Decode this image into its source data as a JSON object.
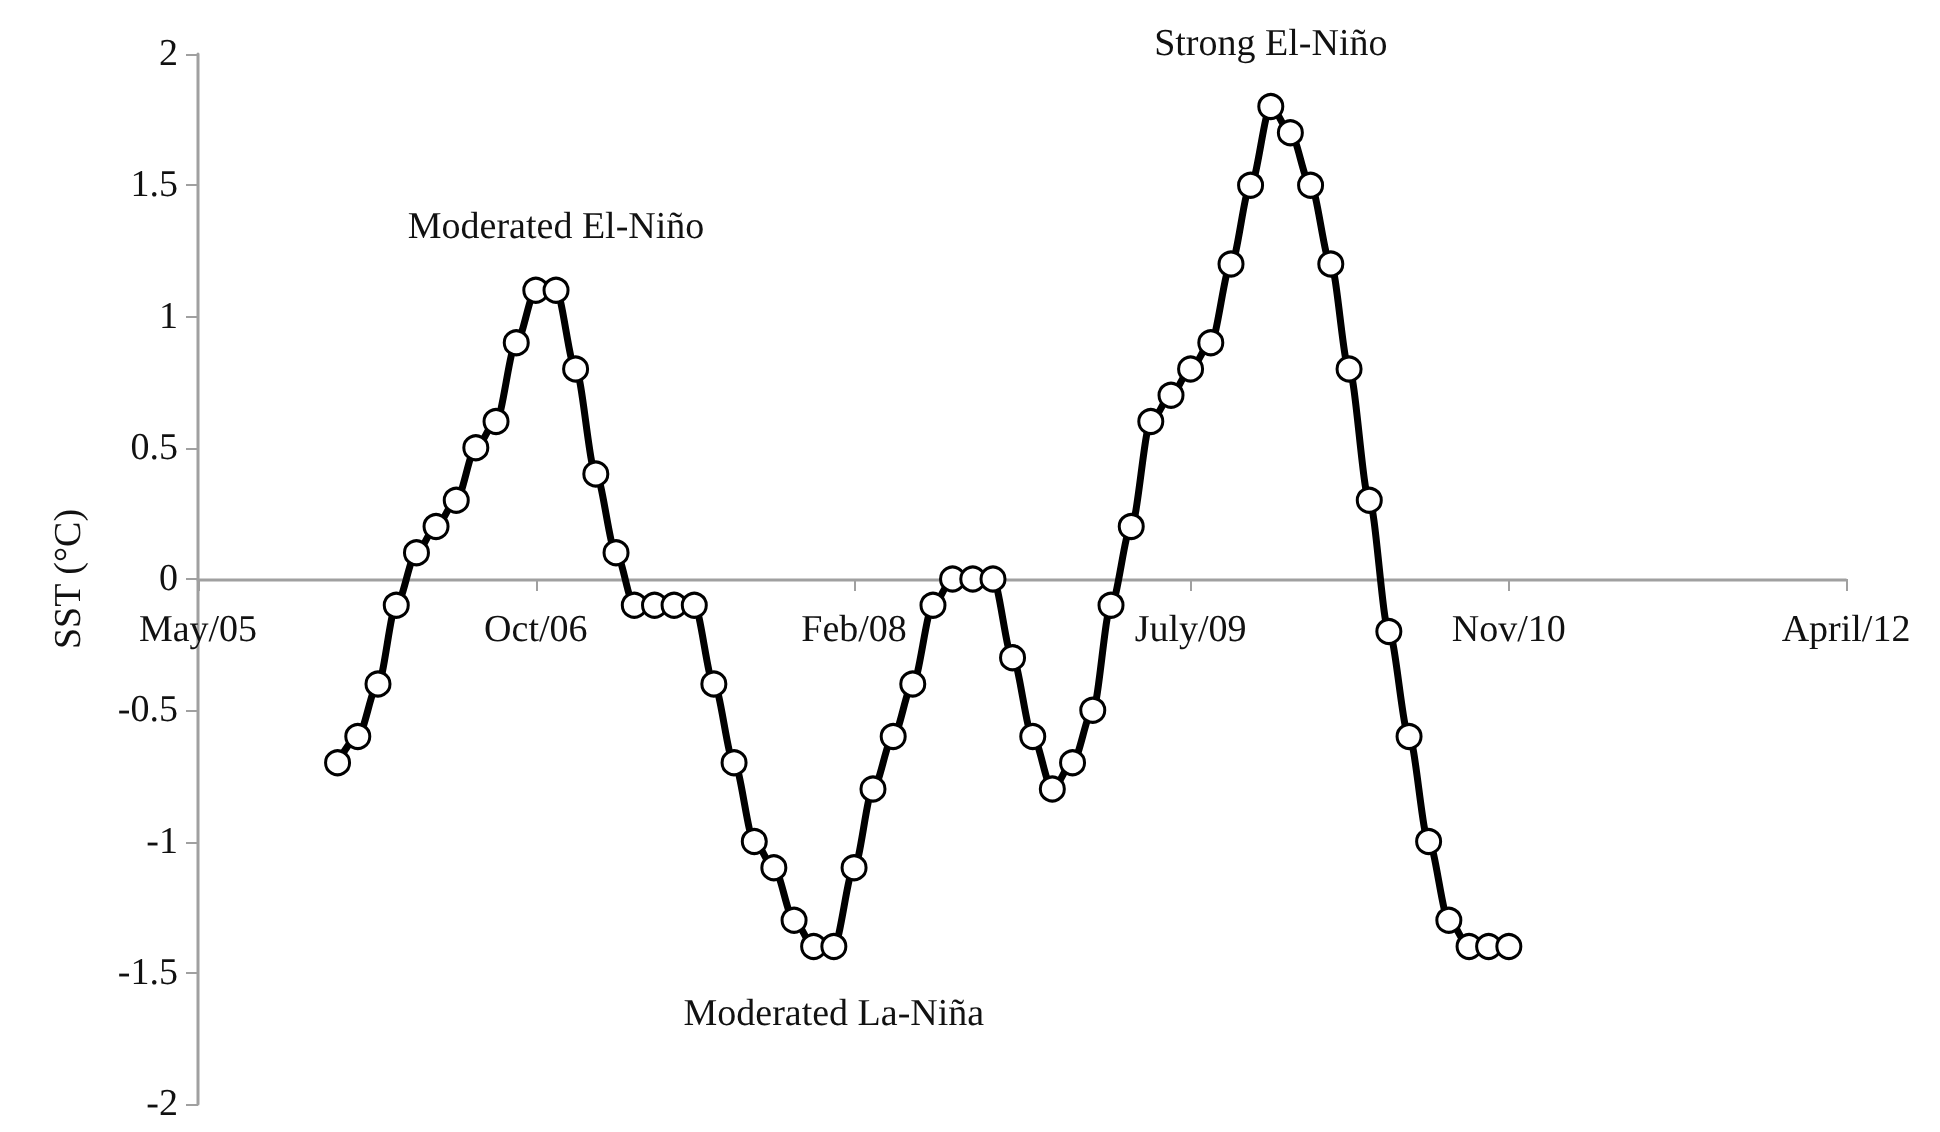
{
  "chart_data": {
    "type": "line",
    "ylabel": "SST (°C)",
    "x": [
      "2005-12",
      "2006-01",
      "2006-02",
      "2006-03",
      "2006-04",
      "2006-05",
      "2006-06",
      "2006-07",
      "2006-08",
      "2006-09",
      "2006-10",
      "2006-11",
      "2006-12",
      "2007-01",
      "2007-02",
      "2007-03",
      "2007-04",
      "2007-05",
      "2007-06",
      "2007-07",
      "2007-08",
      "2007-09",
      "2007-10",
      "2007-11",
      "2007-12",
      "2008-01",
      "2008-02",
      "2008-03",
      "2008-04",
      "2008-05",
      "2008-06",
      "2008-07",
      "2008-08",
      "2008-09",
      "2008-10",
      "2008-11",
      "2008-12",
      "2009-01",
      "2009-02",
      "2009-03",
      "2009-04",
      "2009-05",
      "2009-06",
      "2009-07",
      "2009-08",
      "2009-09",
      "2009-10",
      "2009-11",
      "2009-12",
      "2010-01",
      "2010-02",
      "2010-03",
      "2010-04",
      "2010-05",
      "2010-06",
      "2010-07",
      "2010-08",
      "2010-09",
      "2010-10",
      "2010-11"
    ],
    "series": [
      {
        "color": "#000000",
        "values": [
          -0.7,
          -0.6,
          -0.4,
          -0.1,
          0.1,
          0.2,
          0.3,
          0.5,
          0.6,
          0.9,
          1.1,
          1.1,
          0.8,
          0.4,
          0.1,
          -0.1,
          -0.1,
          -0.1,
          -0.1,
          -0.4,
          -0.7,
          -1.0,
          -1.1,
          -1.3,
          -1.4,
          -1.4,
          -1.1,
          -0.8,
          -0.6,
          -0.4,
          -0.1,
          0,
          0,
          0,
          -0.3,
          -0.6,
          -0.8,
          -0.7,
          -0.5,
          -0.1,
          0.2,
          0.6,
          0.7,
          0.8,
          0.9,
          1.2,
          1.5,
          1.8,
          1.7,
          1.5,
          1.2,
          0.8,
          0.3,
          -0.2,
          -0.6,
          -1.0,
          -1.3,
          -1.4,
          -1.4,
          -1.4
        ]
      }
    ],
    "xlim": [
      "2005-05",
      "2012-04"
    ],
    "xticks": [
      {
        "value": "2005-05",
        "label": "May/05"
      },
      {
        "value": "2006-10",
        "label": "Oct/06"
      },
      {
        "value": "2008-02",
        "label": "Feb/08"
      },
      {
        "value": "2009-07",
        "label": "July/09"
      },
      {
        "value": "2010-11",
        "label": "Nov/10"
      },
      {
        "value": "2012-04",
        "label": "April/12"
      }
    ],
    "ylim": [
      -2,
      2
    ],
    "yticks": [
      -2,
      -1.5,
      -1,
      -0.5,
      0,
      0.5,
      1,
      1.5,
      2
    ],
    "annotations": [
      {
        "text": "Moderated El-Niño",
        "x": "2006-11",
        "y": 1.1
      },
      {
        "text": "Moderated La-Niña",
        "x": "2008-01",
        "y": -1.4
      },
      {
        "text": "Strong El-Niño",
        "x": "2009-11",
        "y": 1.8
      }
    ],
    "marker": "circle"
  }
}
